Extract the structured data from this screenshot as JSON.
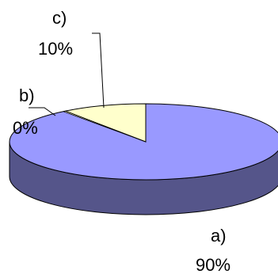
{
  "chart_data": {
    "type": "pie",
    "style": "3d",
    "categories": [
      "a)",
      "b)",
      "c)"
    ],
    "values": [
      90,
      0,
      10
    ],
    "value_labels": [
      "90%",
      "0%",
      "10%"
    ],
    "colors": {
      "a": "#9999ff",
      "a_side": "#55558a",
      "b": "#ffffcc",
      "c": "#ffffcc",
      "c_side": "#e8e4b0",
      "outline": "#000000",
      "leader": "#000000"
    },
    "legend": "none",
    "grid": false
  }
}
